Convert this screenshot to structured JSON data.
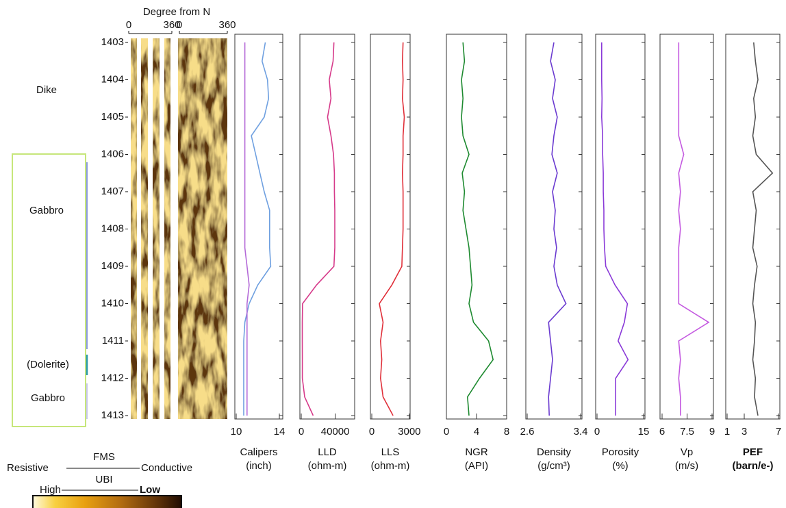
{
  "lithology": [
    "Dike",
    "Gabbro",
    "(Dolerite)",
    "Gabbro"
  ],
  "legend": {
    "top": "FMS",
    "bottom": "UBI",
    "left": "Resistive",
    "right": "Conductive",
    "high": "High",
    "low": "Low"
  },
  "chart_data": [
    {
      "type": "image",
      "title": "Degree from N",
      "panels": [
        {
          "xlim": [
            0,
            360
          ],
          "xticks": [
            0,
            360
          ]
        },
        {
          "xlim": [
            0,
            360
          ],
          "xticks": [
            0,
            360
          ]
        }
      ],
      "ylim": [
        1403,
        1413
      ],
      "yticks": [
        1403,
        1404,
        1405,
        1406,
        1407,
        1408,
        1409,
        1410,
        1411,
        1412,
        1413
      ]
    },
    {
      "type": "line",
      "x_label": "Calipers",
      "x_unit": "(inch)",
      "xlim": [
        10,
        14
      ],
      "xticks": [
        10,
        14
      ],
      "ylim": [
        1403,
        1413
      ],
      "depth": [
        1403,
        1403.5,
        1404,
        1404.5,
        1405,
        1405.5,
        1406,
        1406.5,
        1407,
        1407.5,
        1408,
        1408.5,
        1409,
        1409.5,
        1410,
        1410.5,
        1411,
        1411.5,
        1412,
        1412.5,
        1413
      ],
      "series": [
        {
          "color": "#6fa0e0",
          "values": [
            12.7,
            12.4,
            12.9,
            13.0,
            12.6,
            11.4,
            11.8,
            12.2,
            12.6,
            13.1,
            13.1,
            13.1,
            13.2,
            12.0,
            11.2,
            10.8,
            10.7,
            10.7,
            10.7,
            10.7,
            10.7
          ]
        },
        {
          "color": "#b46ad8",
          "values": [
            10.8,
            10.8,
            10.8,
            10.8,
            10.8,
            10.8,
            10.8,
            10.8,
            10.8,
            10.8,
            10.8,
            10.8,
            11.0,
            11.2,
            11.0,
            11.0,
            11.0,
            11.0,
            11.0,
            11.0,
            11.0
          ]
        }
      ]
    },
    {
      "type": "line",
      "x_label": "LLD",
      "x_unit": "(ohm-m)",
      "xlim": [
        0,
        50000
      ],
      "xticks": [
        0,
        40000
      ],
      "ylim": [
        1403,
        1413
      ],
      "depth": [
        1403,
        1403.5,
        1404,
        1404.5,
        1405,
        1405.5,
        1406,
        1406.5,
        1407,
        1407.5,
        1408,
        1408.5,
        1409,
        1409.5,
        1410,
        1410.5,
        1411,
        1411.5,
        1412,
        1412.5,
        1413
      ],
      "series": [
        {
          "color": "#d63a8a",
          "values": [
            38500,
            37500,
            33000,
            35000,
            31000,
            35000,
            38000,
            39000,
            39000,
            39500,
            39500,
            39500,
            38500,
            18000,
            1500,
            1200,
            1200,
            1300,
            1300,
            4000,
            14000
          ]
        }
      ]
    },
    {
      "type": "line",
      "x_label": "LLS",
      "x_unit": "(ohm-m)",
      "xlim": [
        0,
        3500
      ],
      "xticks": [
        0,
        3000
      ],
      "ylim": [
        1403,
        1413
      ],
      "depth": [
        1403,
        1403.5,
        1404,
        1404.5,
        1405,
        1405.5,
        1406,
        1406.5,
        1407,
        1407.5,
        1408,
        1408.5,
        1409,
        1409.5,
        1410,
        1410.5,
        1411,
        1411.5,
        1412,
        1412.5,
        1413
      ],
      "series": [
        {
          "color": "#e0303a",
          "values": [
            2500,
            2450,
            2500,
            2450,
            2600,
            2500,
            2500,
            2450,
            2500,
            2500,
            2500,
            2450,
            2400,
            1600,
            600,
            900,
            700,
            800,
            700,
            900,
            1700
          ]
        }
      ]
    },
    {
      "type": "line",
      "x_label": "NGR",
      "x_unit": "(API)",
      "xlim": [
        0,
        8
      ],
      "xticks": [
        0,
        4,
        8
      ],
      "ylim": [
        1403,
        1413
      ],
      "depth": [
        1403,
        1403.5,
        1404,
        1404.5,
        1405,
        1405.5,
        1406,
        1406.5,
        1407,
        1407.5,
        1408,
        1408.5,
        1409,
        1409.5,
        1410,
        1410.5,
        1411,
        1411.5,
        1412,
        1412.5,
        1413
      ],
      "series": [
        {
          "color": "#1e8a30",
          "values": [
            2.2,
            2.4,
            2.0,
            2.2,
            2.0,
            2.2,
            3.0,
            2.1,
            2.4,
            2.2,
            2.6,
            3.0,
            3.2,
            3.4,
            3.0,
            3.6,
            5.6,
            6.2,
            4.4,
            2.8,
            3.0
          ]
        }
      ]
    },
    {
      "type": "line",
      "x_label": "Density",
      "x_unit": "(g/cm³)",
      "xlim": [
        2.6,
        3.4
      ],
      "xticks": [
        2.6,
        3.4
      ],
      "ylim": [
        1403,
        1413
      ],
      "depth": [
        1403,
        1403.5,
        1404,
        1404.5,
        1405,
        1405.5,
        1406,
        1406.5,
        1407,
        1407.5,
        1408,
        1408.5,
        1409,
        1409.5,
        1410,
        1410.5,
        1411,
        1411.5,
        1412,
        1412.5,
        1413
      ],
      "series": [
        {
          "color": "#6a3ad0",
          "values": [
            3.0,
            2.95,
            3.02,
            2.98,
            3.05,
            3.0,
            2.97,
            3.05,
            2.98,
            3.02,
            3.0,
            3.04,
            3.0,
            3.05,
            3.18,
            2.92,
            2.95,
            2.98,
            2.95,
            2.92,
            2.93
          ]
        }
      ]
    },
    {
      "type": "line",
      "x_label": "Porosity",
      "x_unit": "(%)",
      "xlim": [
        0,
        15
      ],
      "xticks": [
        0,
        15
      ],
      "ylim": [
        1403,
        1413
      ],
      "depth": [
        1403,
        1403.5,
        1404,
        1404.5,
        1405,
        1405.5,
        1406,
        1406.5,
        1407,
        1407.5,
        1408,
        1408.5,
        1409,
        1409.5,
        1410,
        1410.5,
        1411,
        1411.5,
        1412,
        1412.5,
        1413
      ],
      "series": [
        {
          "color": "#8a3ad8",
          "values": [
            1.5,
            1.5,
            1.5,
            1.6,
            1.5,
            1.8,
            1.8,
            2.0,
            2.0,
            2.2,
            2.2,
            2.4,
            2.8,
            5.8,
            9.8,
            8.8,
            6.8,
            10.0,
            6.0,
            6.0,
            6.0
          ]
        }
      ]
    },
    {
      "type": "line",
      "x_label": "Vp",
      "x_unit": "(m/s)",
      "xlim": [
        6,
        9
      ],
      "xticks": [
        6,
        7.5,
        9
      ],
      "ylim": [
        1403,
        1413
      ],
      "depth": [
        1403,
        1403.5,
        1404,
        1404.5,
        1405,
        1405.5,
        1406,
        1406.5,
        1407,
        1407.5,
        1408,
        1408.5,
        1409,
        1409.5,
        1410,
        1410.5,
        1411,
        1411.5,
        1412,
        1412.5,
        1413
      ],
      "series": [
        {
          "color": "#c45ae0",
          "values": [
            7.0,
            7.0,
            7.0,
            7.0,
            7.0,
            7.0,
            7.3,
            7.0,
            7.1,
            7.0,
            7.1,
            7.0,
            7.0,
            7.0,
            7.0,
            8.8,
            7.0,
            7.1,
            7.0,
            7.1,
            7.1
          ]
        }
      ]
    },
    {
      "type": "line",
      "x_label": "PEF",
      "x_unit": "(barn/e-)",
      "xlim": [
        1,
        7
      ],
      "xticks": [
        1,
        3,
        7
      ],
      "ylim": [
        1403,
        1413
      ],
      "depth": [
        1403,
        1403.5,
        1404,
        1404.5,
        1405,
        1405.5,
        1406,
        1406.5,
        1407,
        1407.5,
        1408,
        1408.5,
        1409,
        1409.5,
        1410,
        1410.5,
        1411,
        1411.5,
        1412,
        1412.5,
        1413
      ],
      "series": [
        {
          "color": "#555555",
          "values": [
            4.1,
            4.3,
            4.6,
            4.1,
            4.3,
            4.0,
            4.4,
            6.3,
            4.0,
            4.4,
            4.2,
            4.0,
            4.5,
            4.2,
            4.0,
            4.3,
            4.2,
            4.0,
            4.3,
            4.2,
            4.6
          ]
        }
      ]
    }
  ]
}
